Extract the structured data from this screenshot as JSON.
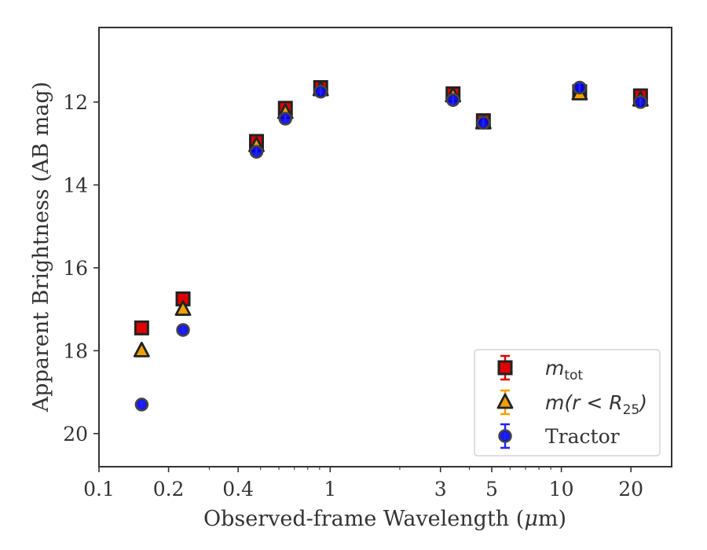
{
  "chart_data": {
    "type": "scatter",
    "xlabel_text": "Observed-frame Wavelength (",
    "xlabel_mu": "μ",
    "xlabel_rest": "m)",
    "ylabel": "Apparent Brightness (AB mag)",
    "xscale": "log",
    "yscale": "linear",
    "y_inverted": true,
    "xlim": [
      0.1,
      30
    ],
    "ylim": [
      20.8,
      10.2
    ],
    "xticks": [
      0.1,
      0.2,
      0.4,
      1,
      3,
      5,
      10,
      20
    ],
    "xtick_labels": [
      "0.1",
      "0.2",
      "0.4",
      "1",
      "3",
      "5",
      "10",
      "20"
    ],
    "yticks": [
      12,
      14,
      16,
      18,
      20
    ],
    "ytick_labels": [
      "12",
      "14",
      "16",
      "18",
      "20"
    ],
    "grid": false,
    "legend_position": "lower-right",
    "series": [
      {
        "name": "m_tot",
        "legend_main": "m",
        "legend_sub": "tot",
        "legend_post": "",
        "marker": "square",
        "color": "#e00000",
        "errcolor": "#e00000",
        "x": [
          0.153,
          0.231,
          0.48,
          0.64,
          0.91,
          3.4,
          4.6,
          12.0,
          22.0
        ],
        "y": [
          17.45,
          16.75,
          12.95,
          12.15,
          11.65,
          11.8,
          12.45,
          11.75,
          11.85
        ]
      },
      {
        "name": "m(r < R_25)",
        "legend_main": "m(r < R",
        "legend_sub": "25",
        "legend_post": ")",
        "marker": "triangle",
        "color": "#f0a000",
        "errcolor": "#f0a000",
        "x": [
          0.153,
          0.231,
          0.48,
          0.64,
          0.91,
          3.4,
          4.6,
          12.0,
          22.0
        ],
        "y": [
          18.0,
          17.0,
          13.05,
          12.25,
          11.7,
          11.85,
          12.5,
          11.8,
          11.95
        ]
      },
      {
        "name": "Tractor",
        "legend_main": "Tractor",
        "legend_sub": "",
        "legend_post": "",
        "marker": "circle",
        "color": "#0000ee",
        "errcolor": "#2222ff",
        "x": [
          0.153,
          0.231,
          0.48,
          0.64,
          0.91,
          3.4,
          4.6,
          12.0,
          22.0
        ],
        "y": [
          19.3,
          17.5,
          13.2,
          12.4,
          11.75,
          11.95,
          12.5,
          11.65,
          12.0
        ]
      }
    ]
  }
}
